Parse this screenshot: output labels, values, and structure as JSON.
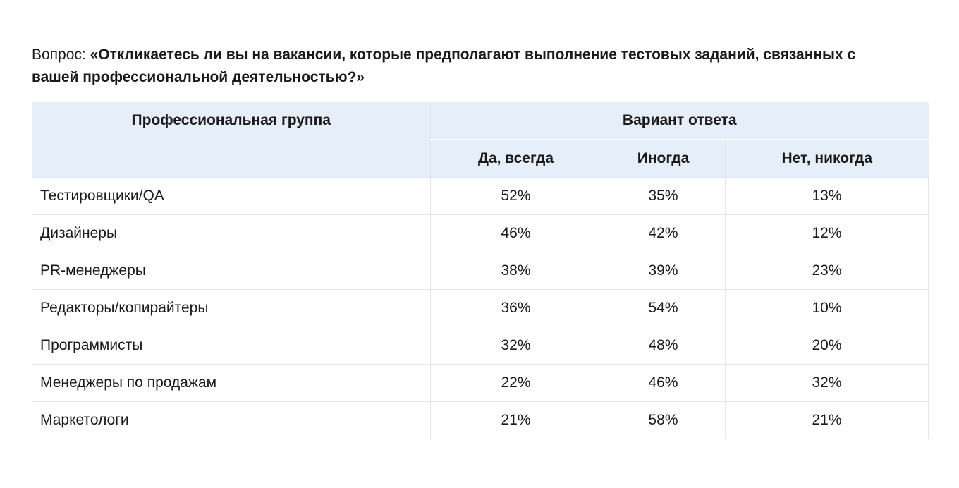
{
  "question": {
    "prefix": "Вопрос: ",
    "text": "«Откликаетесь ли вы на вакансии, которые предполагают выполнение тестовых заданий, связанных с вашей профессиональной деятельностью?»"
  },
  "table": {
    "group_header": "Профессиональная группа",
    "variant_header": "Вариант ответа",
    "answer_headers": [
      "Да, всегда",
      "Иногда",
      "Нет, никогда"
    ],
    "rows": [
      {
        "group": "Тестировщики/QA",
        "yes": "52%",
        "sometimes": "35%",
        "no": "13%"
      },
      {
        "group": "Дизайнеры",
        "yes": "46%",
        "sometimes": "42%",
        "no": "12%"
      },
      {
        "group": "PR-менеджеры",
        "yes": "38%",
        "sometimes": "39%",
        "no": "23%"
      },
      {
        "group": "Редакторы/копирайтеры",
        "yes": "36%",
        "sometimes": "54%",
        "no": "10%"
      },
      {
        "group": "Программисты",
        "yes": "32%",
        "sometimes": "48%",
        "no": "20%"
      },
      {
        "group": "Менеджеры по продажам",
        "yes": "22%",
        "sometimes": "46%",
        "no": "32%"
      },
      {
        "group": "Маркетологи",
        "yes": "21%",
        "sometimes": "58%",
        "no": "21%"
      }
    ]
  },
  "colors": {
    "header_bg": "#e6eef9",
    "text": "#1a1a1a",
    "border": "#e6e6e6"
  }
}
